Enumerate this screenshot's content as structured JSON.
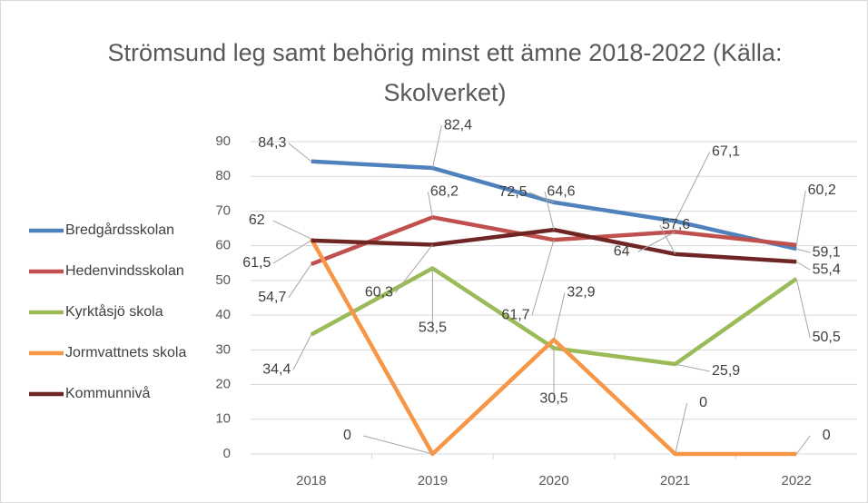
{
  "chart_data": {
    "type": "line",
    "title": "Strömsund leg samt behörig minst ett ämne 2018-2022 (Källa: Skolverket)",
    "categories": [
      "2018",
      "2019",
      "2020",
      "2021",
      "2022"
    ],
    "series": [
      {
        "name": "Bredgårdsskolan",
        "color": "#4f81bd",
        "values": [
          84.3,
          82.4,
          72.5,
          67.1,
          59.1
        ],
        "value_labels": [
          "84,3",
          "82,4",
          "72,5",
          "67,1",
          "59,1"
        ]
      },
      {
        "name": "Hedenvindsskolan",
        "color": "#c0504d",
        "values": [
          54.7,
          68.2,
          61.7,
          64,
          60.2
        ],
        "value_labels": [
          "54,7",
          "68,2",
          "61,7",
          "64",
          "60,2"
        ]
      },
      {
        "name": "Kyrktåsjö skola",
        "color": "#9bbb59",
        "values": [
          34.4,
          53.5,
          30.5,
          25.9,
          50.5
        ],
        "value_labels": [
          "34,4",
          "53,5",
          "30,5",
          "25,9",
          "50,5"
        ]
      },
      {
        "name": "Jormvattnets skola",
        "color": "#f79646",
        "values": [
          62,
          0,
          32.9,
          0,
          0
        ],
        "value_labels": [
          "62",
          "0",
          "32,9",
          "0",
          "0"
        ]
      },
      {
        "name": "Kommunnivå",
        "color": "#6e2524",
        "values": [
          61.5,
          60.3,
          64.6,
          57.6,
          55.4
        ],
        "value_labels": [
          "61,5",
          "60,3",
          "64,6",
          "57,6",
          "55,4"
        ]
      }
    ],
    "ylim": [
      0,
      90
    ],
    "yticks": [
      0,
      10,
      20,
      30,
      40,
      50,
      60,
      70,
      80,
      90
    ],
    "grid": true,
    "legend": "left"
  }
}
